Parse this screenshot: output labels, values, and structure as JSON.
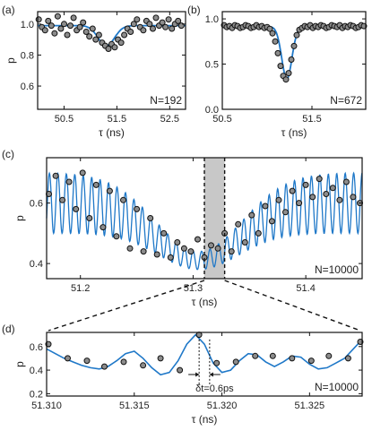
{
  "chart_data": [
    {
      "panel": "(a)",
      "type": "scatter",
      "xlabel": "τ (ns)",
      "ylabel": "p",
      "annotation": "N=192",
      "xlim": [
        50.0,
        52.8
      ],
      "ylim": [
        0.45,
        1.08
      ],
      "xticks": [
        "50.5",
        "51.5",
        "52.5"
      ],
      "yticks": [
        "0.6",
        "0.8",
        "1.0"
      ],
      "xtick_values": [
        50.5,
        51.5,
        52.5
      ],
      "ytick_values": [
        0.6,
        0.8,
        1.0
      ],
      "fit_color": "#1f78c8",
      "points": {
        "x": [
          50.02,
          50.08,
          50.14,
          50.2,
          50.26,
          50.32,
          50.38,
          50.44,
          50.5,
          50.56,
          50.62,
          50.68,
          50.74,
          50.8,
          50.86,
          50.92,
          50.98,
          51.04,
          51.1,
          51.16,
          51.22,
          51.28,
          51.34,
          51.4,
          51.46,
          51.52,
          51.58,
          51.64,
          51.7,
          51.76,
          51.82,
          51.88,
          51.94,
          52.0,
          52.06,
          52.12,
          52.18,
          52.24,
          52.3,
          52.36,
          52.42,
          52.48,
          52.54,
          52.6,
          52.66,
          52.72
        ],
        "y": [
          1.03,
          0.98,
          0.96,
          1.02,
          0.99,
          0.94,
          1.05,
          0.97,
          1.0,
          0.93,
          0.99,
          1.04,
          0.96,
          0.98,
          1.01,
          0.95,
          0.92,
          0.97,
          0.9,
          0.93,
          0.88,
          0.86,
          0.84,
          0.87,
          0.85,
          0.9,
          0.88,
          0.93,
          0.97,
          0.95,
          1.0,
          1.03,
          0.98,
          0.96,
          1.02,
          1.0,
          0.97,
          1.04,
          0.99,
          1.01,
          0.98,
          1.03,
          0.97,
          1.0,
          1.02,
          0.99
        ]
      },
      "fit": {
        "baseline": 0.99,
        "dip_depth": 0.13,
        "center": 51.3,
        "width": 0.22
      }
    },
    {
      "panel": "(b)",
      "type": "scatter",
      "xlabel": "τ (ns)",
      "ylabel": "",
      "annotation": "N=672",
      "xlim": [
        50.5,
        52.1
      ],
      "ylim": [
        0.0,
        1.08
      ],
      "xticks": [
        "50.5",
        "51.5"
      ],
      "yticks": [
        "0.0",
        "0.5",
        "1.0"
      ],
      "xtick_values": [
        50.5,
        51.5
      ],
      "ytick_values": [
        0.0,
        0.5,
        1.0
      ],
      "fit_color": "#1f78c8",
      "points": {
        "x": [
          50.52,
          50.55,
          50.58,
          50.61,
          50.64,
          50.67,
          50.7,
          50.73,
          50.76,
          50.79,
          50.82,
          50.85,
          50.88,
          50.91,
          50.94,
          50.97,
          51.0,
          51.03,
          51.06,
          51.09,
          51.12,
          51.15,
          51.18,
          51.21,
          51.24,
          51.27,
          51.3,
          51.33,
          51.36,
          51.39,
          51.42,
          51.45,
          51.48,
          51.51,
          51.54,
          51.57,
          51.6,
          51.63,
          51.66,
          51.69,
          51.72,
          51.75,
          51.78,
          51.81,
          51.84,
          51.87,
          51.9,
          51.93,
          51.96,
          51.99,
          52.02,
          52.05,
          52.08
        ],
        "y": [
          0.93,
          0.91,
          0.92,
          0.9,
          0.93,
          0.92,
          0.9,
          0.91,
          0.93,
          0.92,
          0.9,
          0.91,
          0.93,
          0.91,
          0.92,
          0.9,
          0.91,
          0.89,
          0.84,
          0.75,
          0.62,
          0.48,
          0.37,
          0.33,
          0.4,
          0.55,
          0.7,
          0.82,
          0.88,
          0.9,
          0.92,
          0.91,
          0.93,
          0.9,
          0.92,
          0.91,
          0.93,
          0.92,
          0.9,
          0.91,
          0.93,
          0.92,
          0.91,
          0.93,
          0.9,
          0.92,
          0.91,
          0.93,
          0.92,
          0.9,
          0.91,
          0.93,
          0.92
        ]
      },
      "fit": {
        "baseline": 0.915,
        "dip_depth": 0.58,
        "center": 51.22,
        "width": 0.08
      }
    },
    {
      "panel": "(c)",
      "type": "scatter",
      "xlabel": "τ (ns)",
      "ylabel": "p",
      "annotation": "N=10000",
      "xlim": [
        51.17,
        51.45
      ],
      "ylim": [
        0.35,
        0.75
      ],
      "xticks": [
        "51.2",
        "51.3",
        "51.4"
      ],
      "yticks": [
        "0.4",
        "0.6"
      ],
      "xtick_values": [
        51.2,
        51.3,
        51.4
      ],
      "ytick_values": [
        0.4,
        0.6
      ],
      "fit_color": "#1f78c8",
      "shaded_region": [
        51.31,
        51.328
      ],
      "points": {
        "x": [
          51.172,
          51.178,
          51.184,
          51.19,
          51.196,
          51.202,
          51.208,
          51.214,
          51.22,
          51.226,
          51.232,
          51.238,
          51.244,
          51.25,
          51.256,
          51.262,
          51.268,
          51.274,
          51.28,
          51.286,
          51.292,
          51.298,
          51.304,
          51.31,
          51.316,
          51.322,
          51.328,
          51.334,
          51.34,
          51.346,
          51.352,
          51.358,
          51.364,
          51.37,
          51.376,
          51.382,
          51.388,
          51.394,
          51.4,
          51.406,
          51.412,
          51.418,
          51.424,
          51.43,
          51.436,
          51.442,
          51.448
        ],
        "y": [
          0.63,
          0.69,
          0.61,
          0.67,
          0.58,
          0.7,
          0.55,
          0.66,
          0.52,
          0.64,
          0.49,
          0.61,
          0.45,
          0.58,
          0.44,
          0.55,
          0.43,
          0.5,
          0.42,
          0.47,
          0.45,
          0.44,
          0.48,
          0.42,
          0.46,
          0.45,
          0.5,
          0.44,
          0.53,
          0.47,
          0.56,
          0.5,
          0.59,
          0.54,
          0.61,
          0.57,
          0.64,
          0.6,
          0.66,
          0.62,
          0.68,
          0.63,
          0.65,
          0.61,
          0.67,
          0.62,
          0.6
        ]
      },
      "fit": {
        "center": 0.6,
        "amp_edge": 0.2,
        "amp_mid": 0.06,
        "mid": 51.305,
        "width": 0.06,
        "period": 0.0075
      }
    },
    {
      "panel": "(d)",
      "type": "scatter",
      "xlabel": "τ (ns)",
      "ylabel": "p",
      "annotation": "N=10000",
      "annotation2": "δt=0.6ps",
      "xlim": [
        51.31,
        51.328
      ],
      "ylim": [
        0.18,
        0.72
      ],
      "xticks": [
        "51.310",
        "51.315",
        "51.320",
        "51.325"
      ],
      "yticks": [
        "0.2",
        "0.4",
        "0.6"
      ],
      "xtick_values": [
        51.31,
        51.315,
        51.32,
        51.325
      ],
      "ytick_values": [
        0.2,
        0.4,
        0.6
      ],
      "fit_color": "#1f78c8",
      "marker_x": [
        51.3187,
        51.3193
      ],
      "points": {
        "x": [
          51.3101,
          51.3112,
          51.3123,
          51.3133,
          51.3144,
          51.3155,
          51.3165,
          51.3176,
          51.3187,
          51.3197,
          51.3208,
          51.3219,
          51.3229,
          51.324,
          51.3251,
          51.3261,
          51.3272,
          51.3279
        ],
        "y": [
          0.62,
          0.5,
          0.48,
          0.43,
          0.47,
          0.44,
          0.5,
          0.4,
          0.7,
          0.46,
          0.47,
          0.52,
          0.52,
          0.5,
          0.48,
          0.52,
          0.5,
          0.64
        ]
      },
      "fit": {
        "x": [
          51.31,
          51.3105,
          51.311,
          51.3115,
          51.312,
          51.3125,
          51.313,
          51.3135,
          51.314,
          51.3145,
          51.315,
          51.3155,
          51.316,
          51.3165,
          51.317,
          51.3175,
          51.318,
          51.3185,
          51.319,
          51.3195,
          51.32,
          51.3205,
          51.321,
          51.3215,
          51.322,
          51.3225,
          51.323,
          51.3235,
          51.324,
          51.3245,
          51.325,
          51.3255,
          51.326,
          51.3265,
          51.327,
          51.3275,
          51.328
        ],
        "y": [
          0.58,
          0.54,
          0.5,
          0.47,
          0.44,
          0.42,
          0.41,
          0.43,
          0.48,
          0.54,
          0.56,
          0.5,
          0.42,
          0.36,
          0.38,
          0.48,
          0.62,
          0.7,
          0.62,
          0.46,
          0.38,
          0.4,
          0.48,
          0.54,
          0.53,
          0.47,
          0.43,
          0.47,
          0.52,
          0.51,
          0.45,
          0.41,
          0.42,
          0.46,
          0.5,
          0.58,
          0.66
        ]
      }
    }
  ],
  "colors": {
    "marker_fill": "#8c8c8c",
    "marker_edge": "#111111",
    "fit": "#1f78c8",
    "shade": "#c8c8c8"
  }
}
